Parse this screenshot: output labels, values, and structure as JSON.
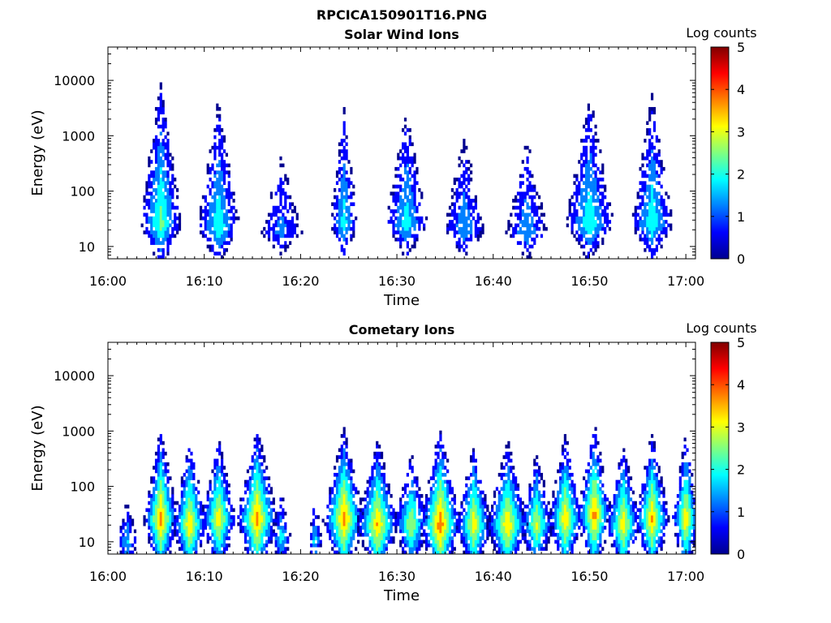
{
  "figure_title": "RPCICA150901T16.PNG",
  "colormap": [
    "#00008f",
    "#0000ff",
    "#0080ff",
    "#00ffff",
    "#80ff80",
    "#ffff00",
    "#ff8000",
    "#ff0000",
    "#800000"
  ],
  "chart_data": [
    {
      "type": "heatmap",
      "title": "Solar Wind Ions",
      "xlabel": "Time",
      "ylabel": "Energy (eV)",
      "x_ticks": [
        "16:00",
        "16:10",
        "16:20",
        "16:30",
        "16:40",
        "16:50",
        "17:00"
      ],
      "x_range": [
        "16:00",
        "17:01"
      ],
      "y_scale": "log",
      "y_ticks": [
        10,
        100,
        1000,
        10000
      ],
      "y_range": [
        6,
        40000
      ],
      "colorbar": {
        "label": "Log counts",
        "ticks": [
          0,
          1,
          2,
          3,
          4,
          5
        ],
        "range": [
          0,
          5
        ]
      },
      "bursts": [
        {
          "center_min": 5.5,
          "width_min": 3.0,
          "peak_energy_eV": 25,
          "peak_log_counts": 2.5
        },
        {
          "center_min": 11.5,
          "width_min": 3.0,
          "peak_energy_eV": 22,
          "peak_log_counts": 2.2
        },
        {
          "center_min": 18.0,
          "width_min": 3.0,
          "peak_energy_eV": 18,
          "peak_log_counts": 1.3
        },
        {
          "center_min": 24.5,
          "width_min": 2.0,
          "peak_energy_eV": 25,
          "peak_log_counts": 2.0
        },
        {
          "center_min": 31.0,
          "width_min": 3.0,
          "peak_energy_eV": 25,
          "peak_log_counts": 2.0
        },
        {
          "center_min": 37.0,
          "width_min": 3.0,
          "peak_energy_eV": 20,
          "peak_log_counts": 1.6
        },
        {
          "center_min": 43.5,
          "width_min": 3.0,
          "peak_energy_eV": 18,
          "peak_log_counts": 1.6
        },
        {
          "center_min": 50.0,
          "width_min": 3.5,
          "peak_energy_eV": 25,
          "peak_log_counts": 2.2
        },
        {
          "center_min": 56.5,
          "width_min": 3.0,
          "peak_energy_eV": 25,
          "peak_log_counts": 2.2
        }
      ]
    },
    {
      "type": "heatmap",
      "title": "Cometary Ions",
      "xlabel": "Time",
      "ylabel": "Energy (eV)",
      "x_ticks": [
        "16:00",
        "16:10",
        "16:20",
        "16:30",
        "16:40",
        "16:50",
        "17:00"
      ],
      "x_range": [
        "16:00",
        "17:01"
      ],
      "y_scale": "log",
      "y_ticks": [
        10,
        100,
        1000,
        10000
      ],
      "y_range": [
        6,
        40000
      ],
      "colorbar": {
        "label": "Log counts",
        "ticks": [
          0,
          1,
          2,
          3,
          4,
          5
        ],
        "range": [
          0,
          5
        ]
      },
      "bursts": [
        {
          "center_min": 2.0,
          "width_min": 1.5,
          "peak_energy_eV": 10,
          "peak_log_counts": 1.8
        },
        {
          "center_min": 5.5,
          "width_min": 2.5,
          "peak_energy_eV": 25,
          "peak_log_counts": 3.8
        },
        {
          "center_min": 8.5,
          "width_min": 2.5,
          "peak_energy_eV": 20,
          "peak_log_counts": 3.5
        },
        {
          "center_min": 11.5,
          "width_min": 2.5,
          "peak_energy_eV": 25,
          "peak_log_counts": 3.4
        },
        {
          "center_min": 15.5,
          "width_min": 3.0,
          "peak_energy_eV": 25,
          "peak_log_counts": 3.8
        },
        {
          "center_min": 18.0,
          "width_min": 1.5,
          "peak_energy_eV": 12,
          "peak_log_counts": 2.0
        },
        {
          "center_min": 21.5,
          "width_min": 1.0,
          "peak_energy_eV": 10,
          "peak_log_counts": 2.0
        },
        {
          "center_min": 24.5,
          "width_min": 3.0,
          "peak_energy_eV": 25,
          "peak_log_counts": 3.8
        },
        {
          "center_min": 28.0,
          "width_min": 3.0,
          "peak_energy_eV": 20,
          "peak_log_counts": 3.6
        },
        {
          "center_min": 31.5,
          "width_min": 2.5,
          "peak_energy_eV": 20,
          "peak_log_counts": 3.0
        },
        {
          "center_min": 34.5,
          "width_min": 3.0,
          "peak_energy_eV": 20,
          "peak_log_counts": 4.0
        },
        {
          "center_min": 38.0,
          "width_min": 2.5,
          "peak_energy_eV": 20,
          "peak_log_counts": 3.4
        },
        {
          "center_min": 41.5,
          "width_min": 3.0,
          "peak_energy_eV": 20,
          "peak_log_counts": 3.5
        },
        {
          "center_min": 44.5,
          "width_min": 2.5,
          "peak_energy_eV": 20,
          "peak_log_counts": 3.0
        },
        {
          "center_min": 47.5,
          "width_min": 2.5,
          "peak_energy_eV": 25,
          "peak_log_counts": 3.5
        },
        {
          "center_min": 50.5,
          "width_min": 2.5,
          "peak_energy_eV": 30,
          "peak_log_counts": 3.8
        },
        {
          "center_min": 53.5,
          "width_min": 2.5,
          "peak_energy_eV": 20,
          "peak_log_counts": 3.4
        },
        {
          "center_min": 56.5,
          "width_min": 2.5,
          "peak_energy_eV": 25,
          "peak_log_counts": 3.6
        },
        {
          "center_min": 60.0,
          "width_min": 2.0,
          "peak_energy_eV": 25,
          "peak_log_counts": 3.5
        }
      ]
    }
  ]
}
